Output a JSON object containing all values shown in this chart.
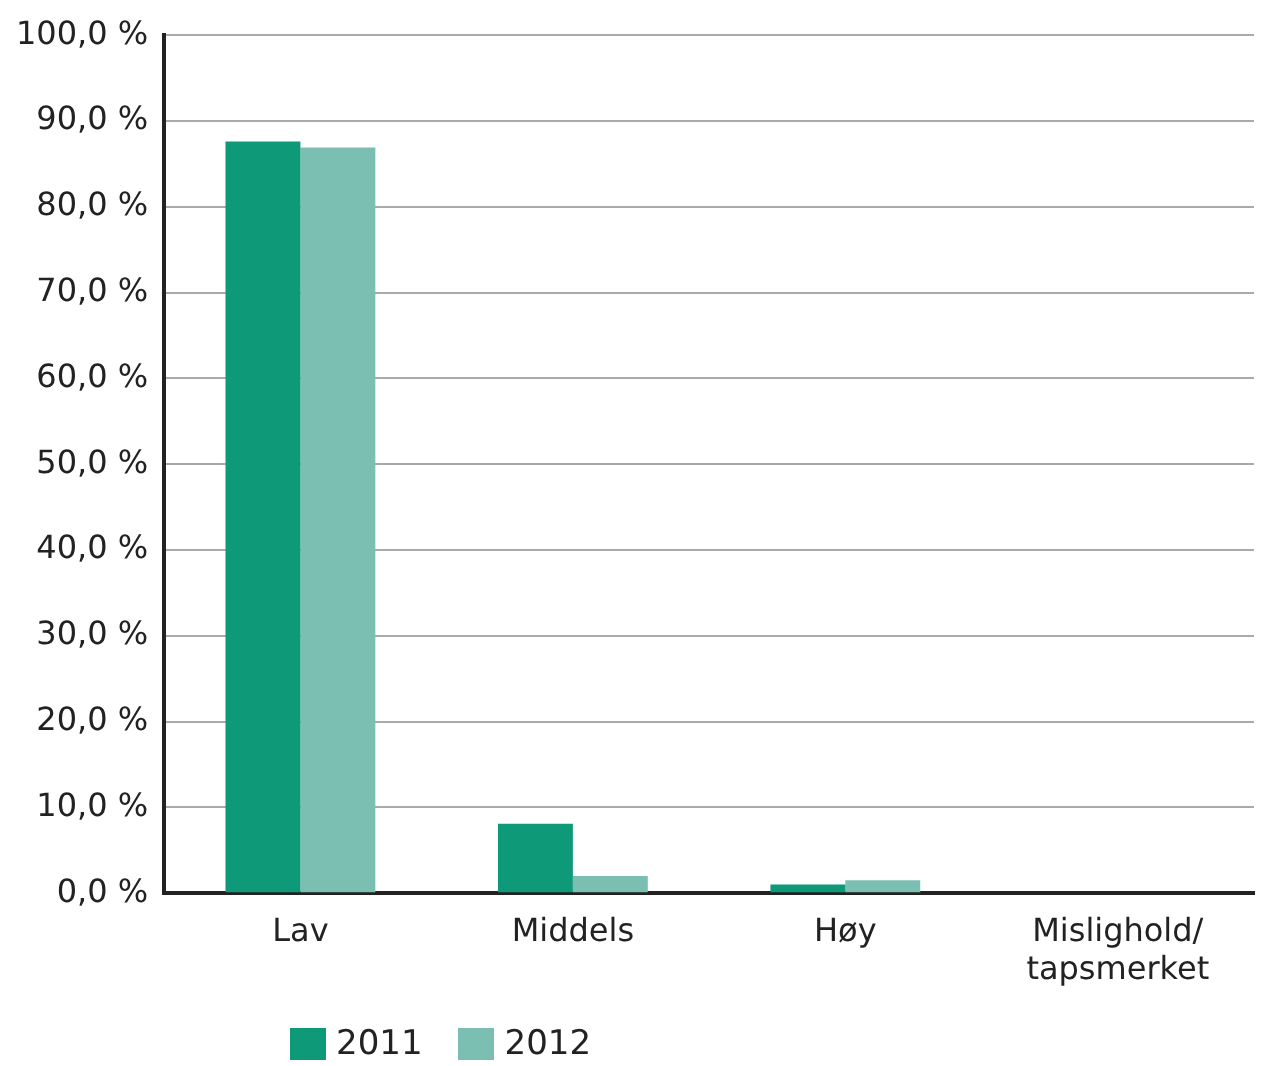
{
  "chart_data": {
    "type": "bar",
    "categories": [
      "Lav",
      "Middels",
      "Høy",
      "Mislighold/ tapsmerket"
    ],
    "series": [
      {
        "name": "2011",
        "color": "#0e9a78",
        "values": [
          87.6,
          8.1,
          1.0,
          null
        ]
      },
      {
        "name": "2012",
        "color": "#7bbfb3",
        "values": [
          86.9,
          2.0,
          1.5,
          null
        ]
      }
    ],
    "ylim": [
      0,
      100
    ],
    "yticks": [
      {
        "value": 0,
        "label": "0,0 %"
      },
      {
        "value": 10,
        "label": "10,0 %"
      },
      {
        "value": 20,
        "label": "20,0 %"
      },
      {
        "value": 30,
        "label": "30,0 %"
      },
      {
        "value": 40,
        "label": "40,0 %"
      },
      {
        "value": 50,
        "label": "50,0 %"
      },
      {
        "value": 60,
        "label": "60,0 %"
      },
      {
        "value": 70,
        "label": "70,0 %"
      },
      {
        "value": 80,
        "label": "80,0 %"
      },
      {
        "value": 90,
        "label": "90,0 %"
      },
      {
        "value": 100,
        "label": "100,0 %"
      }
    ],
    "grid": "y",
    "legend": "bottom left"
  }
}
